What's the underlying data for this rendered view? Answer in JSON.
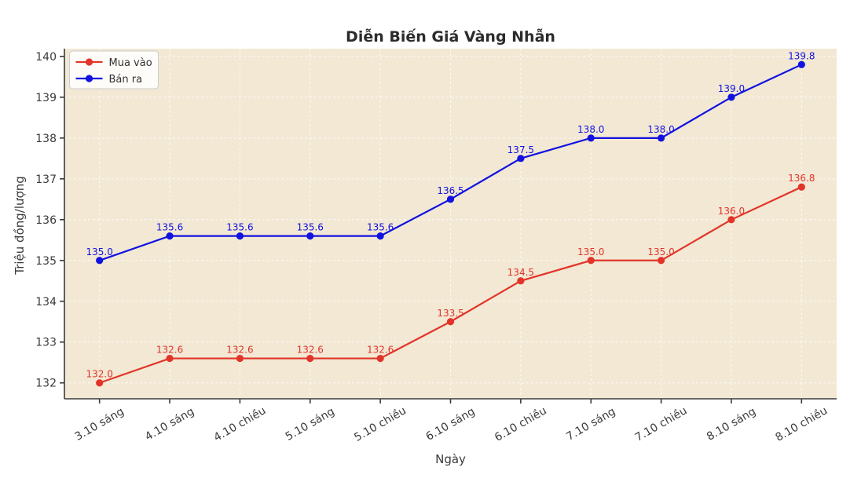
{
  "chart_data": {
    "type": "line",
    "title": "Diễn Biến Giá Vàng Nhẫn",
    "xlabel": "Ngày",
    "ylabel": "Triệu đồng/lượng",
    "categories": [
      "3.10 sáng",
      "4.10 sáng",
      "4.10 chiều",
      "5.10 sáng",
      "5.10 chiều",
      "6.10 sáng",
      "6.10 chiều",
      "7.10 sáng",
      "7.10 chiều",
      "8.10 sáng",
      "8.10 chiều"
    ],
    "series": [
      {
        "name": "Mua vào",
        "color": "#e23429",
        "values": [
          132.0,
          132.6,
          132.6,
          132.6,
          132.6,
          133.5,
          134.5,
          135.0,
          135.0,
          136.0,
          136.8
        ]
      },
      {
        "name": "Bán ra",
        "color": "#1212e0",
        "values": [
          135.0,
          135.6,
          135.6,
          135.6,
          135.6,
          136.5,
          137.5,
          138.0,
          138.0,
          139.0,
          139.8
        ]
      }
    ],
    "yticks": [
      132,
      133,
      134,
      135,
      136,
      137,
      138,
      139,
      140
    ],
    "ylim": [
      131.61,
      140.19
    ],
    "grid": true,
    "legend_position": "upper left",
    "plot_bg": "#f2e8d4",
    "grid_color": "#ffffff",
    "axis_color": "#3b3b3b"
  }
}
